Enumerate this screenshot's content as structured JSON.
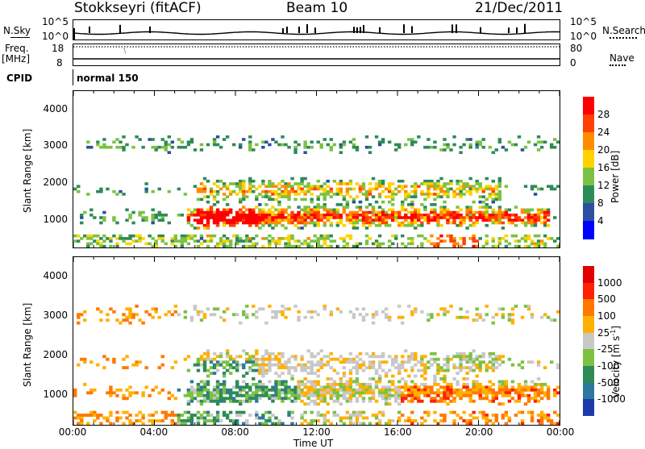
{
  "header": {
    "station": "Stokkseyri (fitACF)",
    "beam": "Beam 10",
    "date": "21/Dec/2011"
  },
  "top_panels": {
    "nsky_label": "N.Sky",
    "nsky_ticks": [
      "10^5",
      "10^0"
    ],
    "nsearch_ticks": [
      "10^5",
      "10^0"
    ],
    "nsearch_label": "N.Search",
    "freq_label": "Freq.",
    "freq_unit": "[MHz]",
    "freq_ticks": [
      "18",
      "8"
    ],
    "nave_ticks": [
      "80",
      "0"
    ],
    "nave_label": "Nave",
    "cpid_label": "CPID",
    "cpid_value": "normal 150"
  },
  "chart_data": [
    {
      "type": "heatmap",
      "name": "power",
      "xlabel": "",
      "ylabel": "Slant Range [km]",
      "x_ticks": [
        "00:00",
        "04:00",
        "08:00",
        "12:00",
        "16:00",
        "20:00",
        "00:00"
      ],
      "y_ticks": [
        "1000",
        "2000",
        "3000",
        "4000"
      ],
      "ylim": [
        200,
        4500
      ],
      "colorbar_label": "Power [dB]",
      "colorbar_ticks": [
        "4",
        "8",
        "12",
        "16",
        "20",
        "24",
        "28"
      ],
      "colorbar_colors": [
        "#0000ff",
        "#2d4fa0",
        "#2e8b57",
        "#7bc242",
        "#ffd200",
        "#ff8c00",
        "#ff4000",
        "#ff0000"
      ],
      "colorbar_range": [
        0,
        32
      ]
    },
    {
      "type": "heatmap",
      "name": "velocity",
      "xlabel": "Time UT",
      "ylabel": "Slant Range [km]",
      "x_ticks": [
        "00:00",
        "04:00",
        "08:00",
        "12:00",
        "16:00",
        "20:00",
        "00:00"
      ],
      "y_ticks": [
        "1000",
        "2000",
        "3000",
        "4000"
      ],
      "ylim": [
        200,
        4500
      ],
      "colorbar_label": "Velocity [m s",
      "colorbar_label_sup": "-1",
      "colorbar_label_end": "]",
      "colorbar_ticks": [
        "1000",
        "500",
        "100",
        "25",
        "-25",
        "-100",
        "-500",
        "-1000"
      ],
      "colorbar_colors": [
        "#1e3aa8",
        "#2d78a0",
        "#2e8b57",
        "#7bc242",
        "#c8c8c8",
        "#ffb000",
        "#ff7800",
        "#ff2000",
        "#e00000"
      ]
    }
  ]
}
